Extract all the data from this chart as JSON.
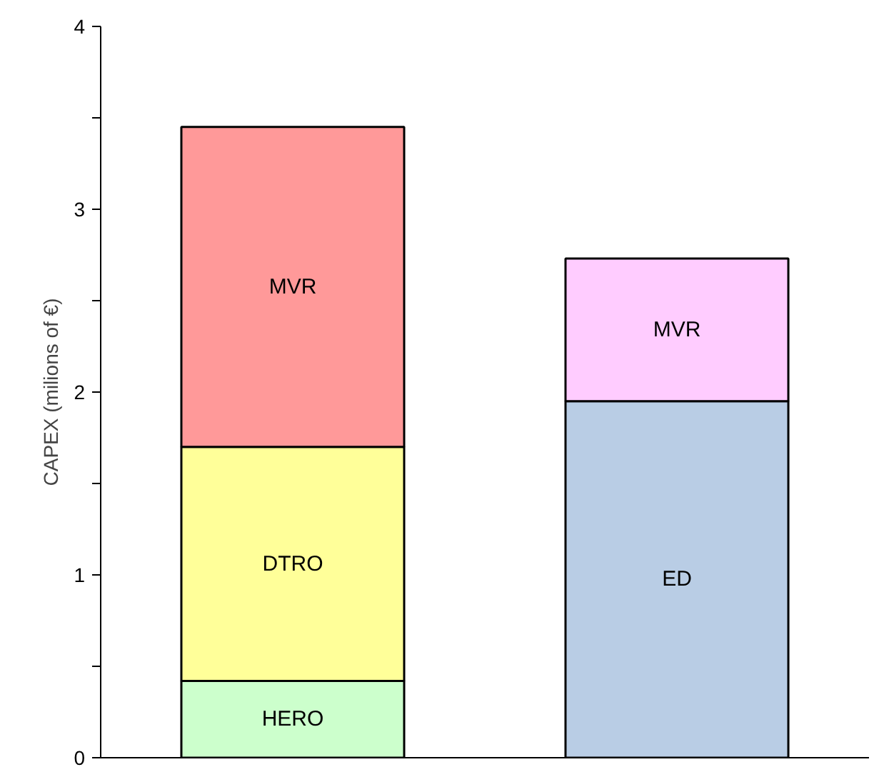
{
  "chart_data": {
    "type": "bar",
    "stacked": true,
    "ylabel": "CAPEX (milions of €)",
    "categories": [
      null,
      null
    ],
    "series": [
      {
        "name": "HERO",
        "color": "#ccffcc",
        "values": [
          0.42,
          null
        ]
      },
      {
        "name": "ED",
        "color": "#b9cde5",
        "values": [
          null,
          1.95
        ]
      },
      {
        "name": "DTRO",
        "color": "#ffff99",
        "values": [
          1.28,
          null
        ]
      },
      {
        "name": "MVR",
        "color": "#ff9999",
        "values": [
          1.75,
          null
        ]
      },
      {
        "name": "MVR",
        "color": "#ffccff",
        "values": [
          null,
          0.78
        ]
      }
    ],
    "ylim": [
      0,
      4
    ],
    "yticks": [
      0,
      {
        "value": 0.5,
        "label": null
      },
      1,
      {
        "value": 1.5,
        "label": null
      },
      2,
      {
        "value": 2.5,
        "label": null
      },
      3,
      {
        "value": 3.5,
        "label": null
      },
      4
    ],
    "tick_labels": "y"
  }
}
